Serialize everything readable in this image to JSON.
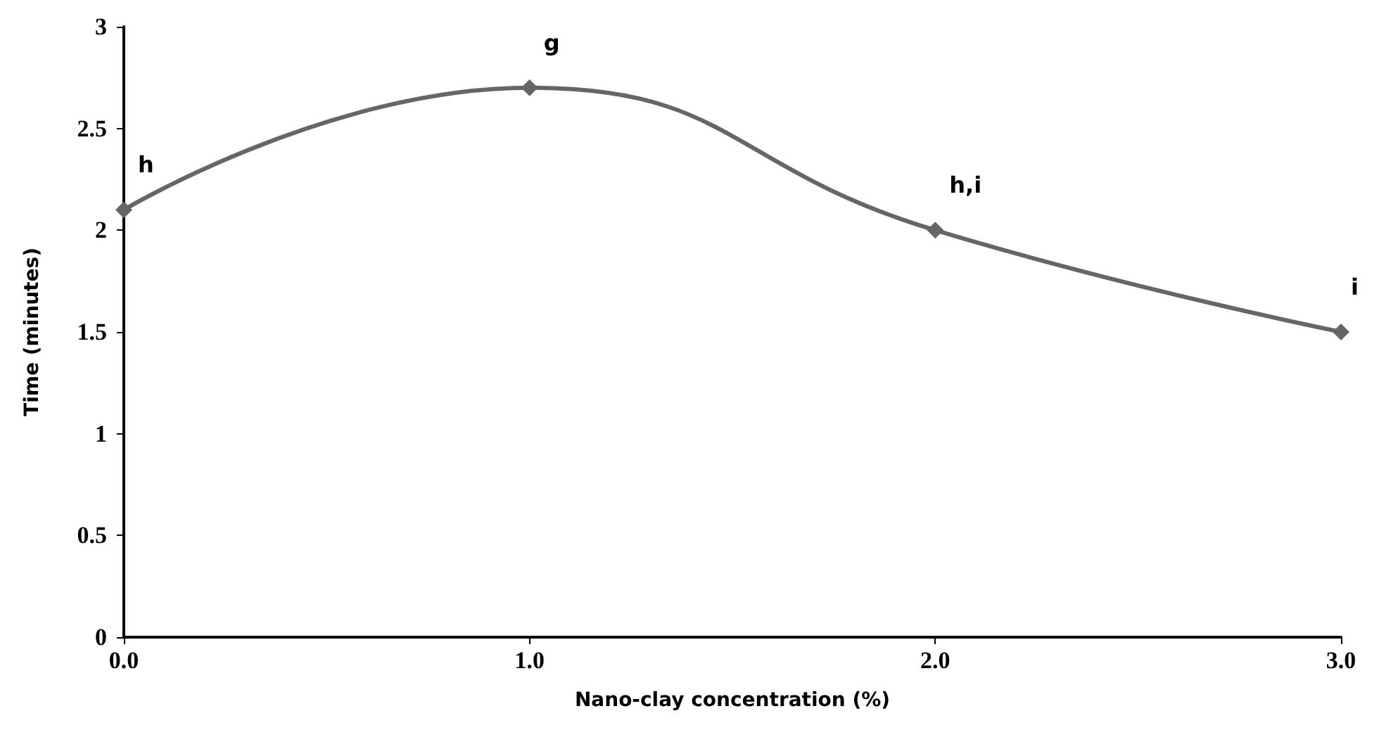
{
  "chart_data": {
    "type": "line",
    "xlabel": "Nano-clay concentration (%)",
    "ylabel": "Time (minutes)",
    "categories": [
      "0.0",
      "1.0",
      "2.0",
      "3.0"
    ],
    "series": [
      {
        "color": "#666666",
        "values": [
          2.1,
          2.7,
          2.0,
          1.5
        ]
      }
    ],
    "ylim": [
      0,
      3
    ],
    "yticks": [
      0,
      0.5,
      1,
      1.5,
      2,
      2.5,
      3
    ],
    "grid": false,
    "marker": "diamond",
    "line_style": "solid",
    "annotations": [
      {
        "text": "h",
        "x": "0.0",
        "y": 2.1
      },
      {
        "text": "g",
        "x": "1.0",
        "y": 2.7
      },
      {
        "text": "h,i",
        "x": "2.0",
        "y": 2.0
      },
      {
        "text": "i",
        "x": "3.0",
        "y": 1.5
      }
    ]
  }
}
